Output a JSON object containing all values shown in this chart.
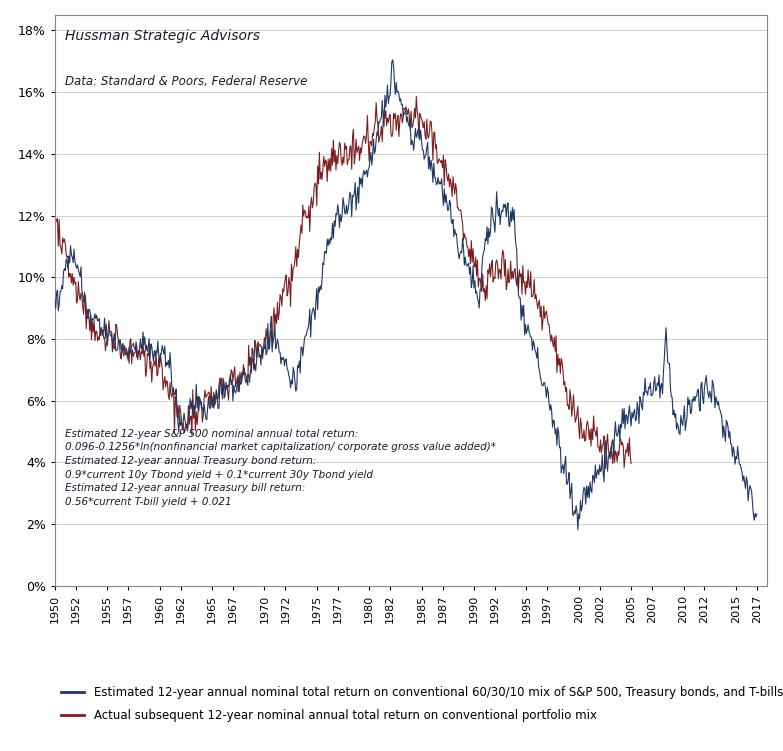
{
  "title_main": "Hussman Strategic Advisors",
  "title_data": "Data: Standard & Poors, Federal Reserve",
  "annotation": "Estimated 12-year S&P 500 nominal annual total return:\n0.096-0.1256*ln(nonfinancial market capitalization/ corporate gross value added)*\nEstimated 12-year annual Treasury bond return:\n0.9*current 10y Tbond yield + 0.1*current 30y Tbond yield\nEstimated 12-year annual Treasury bill return:\n0.56*current T-bill yield + 0.021",
  "legend_line1": "Estimated 12-year annual nominal total return on conventional 60/30/10 mix of S&P 500, Treasury bonds, and T-bills",
  "legend_line2": "Actual subsequent 12-year nominal annual total return on conventional portfolio mix",
  "color_estimated": "#1f3864",
  "color_actual": "#7b2020",
  "ylim": [
    0.0,
    0.185
  ],
  "ytick_labels": [
    "0%",
    "2%",
    "4%",
    "6%",
    "8%",
    "10%",
    "12%",
    "14%",
    "16%",
    "18%"
  ],
  "ytick_values": [
    0.0,
    0.02,
    0.04,
    0.06,
    0.08,
    0.1,
    0.12,
    0.14,
    0.16,
    0.18
  ],
  "background_color": "#ffffff",
  "plot_background": "#ffffff",
  "xtick_years": [
    1950,
    1952,
    1955,
    1957,
    1960,
    1962,
    1965,
    1967,
    1970,
    1972,
    1975,
    1977,
    1980,
    1982,
    1985,
    1987,
    1990,
    1992,
    1995,
    1997,
    2000,
    2002,
    2005,
    2007,
    2010,
    2012,
    2015,
    2017
  ]
}
